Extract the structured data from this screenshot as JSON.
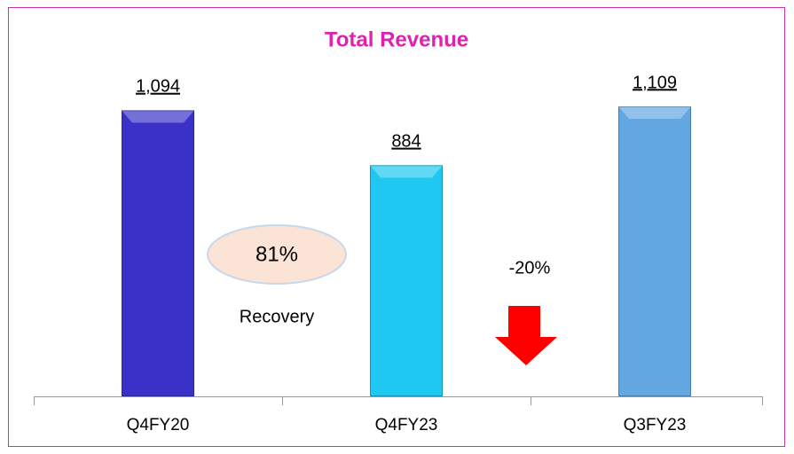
{
  "chart_data": {
    "type": "bar",
    "title": "Total Revenue",
    "categories": [
      "Q4FY20",
      "Q4FY23",
      "Q3FY23"
    ],
    "values": [
      1094,
      884,
      1109
    ],
    "value_labels": [
      "1,094",
      "884",
      "1,109"
    ],
    "colors": [
      "#3a32c8",
      "#1ec8f0",
      "#62a6e2"
    ],
    "annotations": [
      "81%",
      "Recovery",
      "-20%"
    ]
  }
}
